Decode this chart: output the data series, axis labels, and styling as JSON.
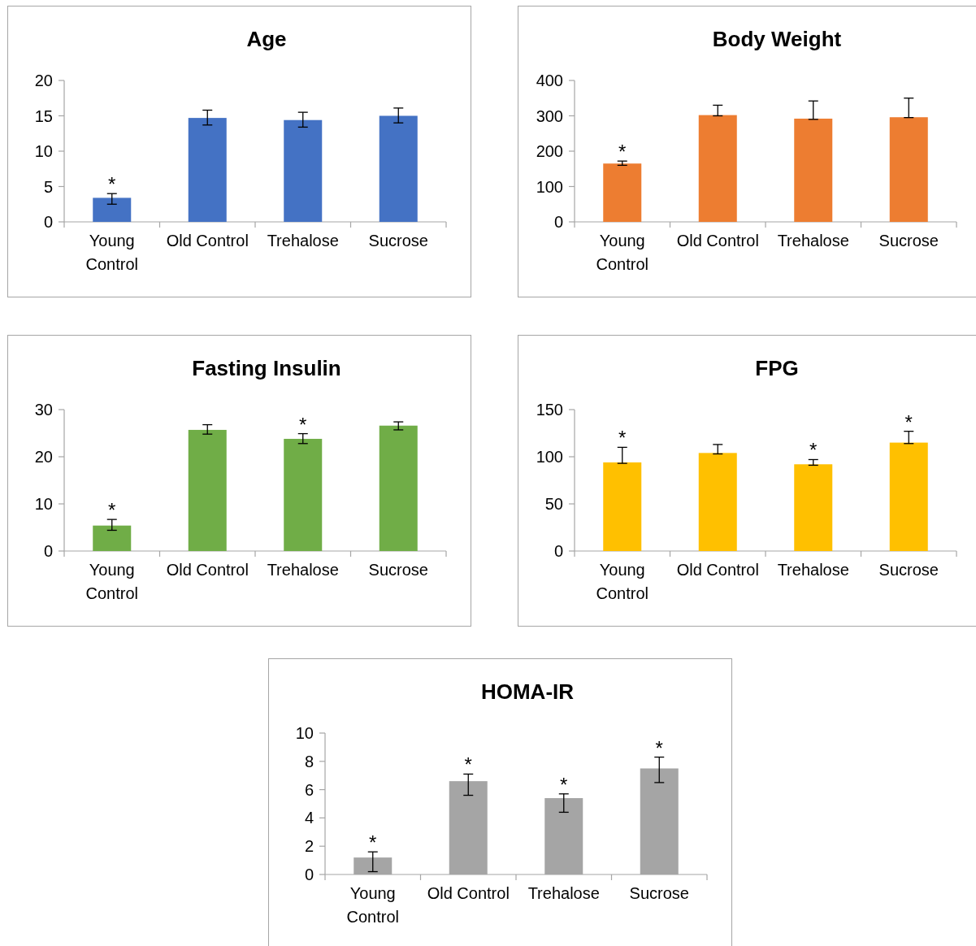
{
  "chart_data": [
    {
      "type": "bar",
      "title": "Age",
      "categories": [
        "Young Control",
        "Old Control",
        "Trehalose",
        "Sucrose"
      ],
      "values": [
        3.4,
        14.7,
        14.4,
        15.0
      ],
      "errors": [
        [
          2.5,
          4.0
        ],
        [
          13.7,
          15.8
        ],
        [
          13.4,
          15.5
        ],
        [
          14.0,
          16.1
        ]
      ],
      "color": "#4472c4",
      "ylim": [
        0,
        20
      ],
      "yticks": [
        0,
        5,
        10,
        15,
        20
      ],
      "annotations": [
        {
          "text": "*",
          "x": "Young Control",
          "y": 4.0
        }
      ]
    },
    {
      "type": "bar",
      "title": "Body Weight",
      "categories": [
        "Young Control",
        "Old Control",
        "Trehalose",
        "Sucrose"
      ],
      "values": [
        165,
        302,
        292,
        296
      ],
      "errors": [
        [
          160,
          172
        ],
        [
          300,
          330
        ],
        [
          290,
          342
        ],
        [
          295,
          350
        ]
      ],
      "color": "#ed7d31",
      "ylim": [
        0,
        400
      ],
      "yticks": [
        0,
        100,
        200,
        300,
        400
      ],
      "annotations": [
        {
          "text": "*",
          "x": "Young Control",
          "y": 172
        }
      ]
    },
    {
      "type": "bar",
      "title": "Fasting Insulin",
      "categories": [
        "Young Control",
        "Old Control",
        "Trehalose",
        "Sucrose"
      ],
      "values": [
        5.4,
        25.7,
        23.8,
        26.6
      ],
      "errors": [
        [
          4.4,
          6.7
        ],
        [
          24.8,
          26.8
        ],
        [
          22.8,
          24.9
        ],
        [
          25.7,
          27.4
        ]
      ],
      "color": "#70ad47",
      "ylim": [
        0,
        30
      ],
      "yticks": [
        0,
        10,
        20,
        30
      ],
      "annotations": [
        {
          "text": "*",
          "x": "Young Control",
          "y": 6.7
        },
        {
          "text": "*",
          "x": "Trehalose",
          "y": 24.9
        }
      ]
    },
    {
      "type": "bar",
      "title": "FPG",
      "categories": [
        "Young Control",
        "Old Control",
        "Trehalose",
        "Sucrose"
      ],
      "values": [
        94,
        104,
        92,
        115
      ],
      "errors": [
        [
          93,
          110
        ],
        [
          103,
          113
        ],
        [
          91,
          97
        ],
        [
          114,
          127
        ]
      ],
      "color": "#ffc000",
      "ylim": [
        0,
        150
      ],
      "yticks": [
        0,
        50,
        100,
        150
      ],
      "annotations": [
        {
          "text": "*",
          "x": "Young Control",
          "y": 110
        },
        {
          "text": "*",
          "x": "Trehalose",
          "y": 97
        },
        {
          "text": "*",
          "x": "Sucrose",
          "y": 127
        }
      ]
    },
    {
      "type": "bar",
      "title": "HOMA-IR",
      "categories": [
        "Young Control",
        "Old Control",
        "Trehalose",
        "Sucrose"
      ],
      "values": [
        1.2,
        6.6,
        5.4,
        7.5
      ],
      "errors": [
        [
          0.2,
          1.6
        ],
        [
          5.6,
          7.1
        ],
        [
          4.4,
          5.7
        ],
        [
          6.5,
          8.3
        ]
      ],
      "color": "#a5a5a5",
      "ylim": [
        0,
        10
      ],
      "yticks": [
        0,
        2,
        4,
        6,
        8,
        10
      ],
      "annotations": [
        {
          "text": "*",
          "x": "Young Control",
          "y": 1.6
        },
        {
          "text": "*",
          "x": "Old Control",
          "y": 7.1
        },
        {
          "text": "*",
          "x": "Trehalose",
          "y": 5.7
        },
        {
          "text": "*",
          "x": "Sucrose",
          "y": 8.3
        }
      ]
    }
  ]
}
